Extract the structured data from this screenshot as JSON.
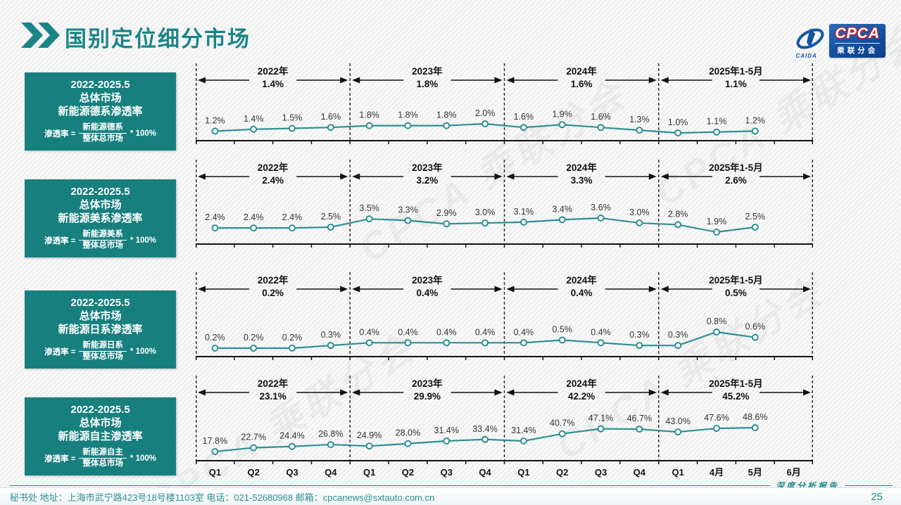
{
  "header": {
    "title": "国别定位细分市场",
    "logo": {
      "cpca": "CPCA",
      "sub": "乘联分会",
      "caida": "CAIDA"
    }
  },
  "watermark_text": "CPCA 乘联分会",
  "sidebar_boxes": [
    {
      "line1": "2022-2025.5",
      "line2": "总体市场",
      "line3": "新能源德系渗透率",
      "formula_prefix": "渗透率 =",
      "numerator": "新能源德系",
      "denominator": "整体总市场",
      "suffix": "* 100%"
    },
    {
      "line1": "2022-2025.5",
      "line2": "总体市场",
      "line3": "新能源美系渗透率",
      "formula_prefix": "渗透率 =",
      "numerator": "新能源美系",
      "denominator": "整体总市场",
      "suffix": "* 100%"
    },
    {
      "line1": "2022-2025.5",
      "line2": "总体市场",
      "line3": "新能源日系渗透率",
      "formula_prefix": "渗透率 =",
      "numerator": "新能源日系",
      "denominator": "整体总市场",
      "suffix": "* 100%"
    },
    {
      "line1": "2022-2025.5",
      "line2": "总体市场",
      "line3": "新能源自主渗透率",
      "formula_prefix": "渗透率 =",
      "numerator": "新能源自主",
      "denominator": "整体总市场",
      "suffix": "* 100%"
    }
  ],
  "x_axis_labels": [
    "Q1",
    "Q2",
    "Q3",
    "Q4",
    "Q1",
    "Q2",
    "Q3",
    "Q4",
    "Q1",
    "Q2",
    "Q3",
    "Q4",
    "Q1",
    "4月",
    "5月",
    "6月"
  ],
  "chart_data": [
    {
      "type": "line",
      "title": "2022-2025.5 总体市场 新能源德系渗透率",
      "x": [
        "Q1",
        "Q2",
        "Q3",
        "Q4",
        "Q1",
        "Q2",
        "Q3",
        "Q4",
        "Q1",
        "Q2",
        "Q3",
        "Q4",
        "Q1",
        "4月",
        "5月"
      ],
      "values": [
        1.2,
        1.4,
        1.5,
        1.6,
        1.8,
        1.8,
        1.8,
        2.0,
        1.6,
        1.9,
        1.6,
        1.3,
        1.0,
        1.1,
        1.2
      ],
      "unit": "%",
      "periods": [
        {
          "label": "2022年",
          "avg": "1.4%"
        },
        {
          "label": "2023年",
          "avg": "1.8%"
        },
        {
          "label": "2024年",
          "avg": "1.6%"
        },
        {
          "label": "2025年1-5月",
          "avg": "1.1%"
        }
      ]
    },
    {
      "type": "line",
      "title": "2022-2025.5 总体市场 新能源美系渗透率",
      "x": [
        "Q1",
        "Q2",
        "Q3",
        "Q4",
        "Q1",
        "Q2",
        "Q3",
        "Q4",
        "Q1",
        "Q2",
        "Q3",
        "Q4",
        "Q1",
        "4月",
        "5月"
      ],
      "values": [
        2.4,
        2.4,
        2.4,
        2.5,
        3.5,
        3.3,
        2.9,
        3.0,
        3.1,
        3.4,
        3.6,
        3.0,
        2.8,
        1.9,
        2.5
      ],
      "unit": "%",
      "periods": [
        {
          "label": "2022年",
          "avg": "2.4%"
        },
        {
          "label": "2023年",
          "avg": "3.2%"
        },
        {
          "label": "2024年",
          "avg": "3.3%"
        },
        {
          "label": "2025年1-5月",
          "avg": "2.6%"
        }
      ]
    },
    {
      "type": "line",
      "title": "2022-2025.5 总体市场 新能源日系渗透率",
      "x": [
        "Q1",
        "Q2",
        "Q3",
        "Q4",
        "Q1",
        "Q2",
        "Q3",
        "Q4",
        "Q1",
        "Q2",
        "Q3",
        "Q4",
        "Q1",
        "4月",
        "5月"
      ],
      "values": [
        0.2,
        0.2,
        0.2,
        0.3,
        0.4,
        0.4,
        0.4,
        0.4,
        0.4,
        0.5,
        0.4,
        0.3,
        0.3,
        0.8,
        0.6
      ],
      "unit": "%",
      "periods": [
        {
          "label": "2022年",
          "avg": "0.2%"
        },
        {
          "label": "2023年",
          "avg": "0.4%"
        },
        {
          "label": "2024年",
          "avg": "0.4%"
        },
        {
          "label": "2025年1-5月",
          "avg": "0.5%"
        }
      ]
    },
    {
      "type": "line",
      "title": "2022-2025.5 总体市场 新能源自主渗透率",
      "x": [
        "Q1",
        "Q2",
        "Q3",
        "Q4",
        "Q1",
        "Q2",
        "Q3",
        "Q4",
        "Q1",
        "Q2",
        "Q3",
        "Q4",
        "Q1",
        "4月",
        "5月"
      ],
      "values": [
        17.8,
        22.7,
        24.4,
        26.8,
        24.9,
        28.0,
        31.4,
        33.4,
        31.4,
        40.7,
        47.1,
        46.7,
        43.0,
        47.6,
        48.6
      ],
      "unit": "%",
      "periods": [
        {
          "label": "2022年",
          "avg": "23.1%"
        },
        {
          "label": "2023年",
          "avg": "29.9%"
        },
        {
          "label": "2024年",
          "avg": "42.2%"
        },
        {
          "label": "2025年1-5月",
          "avg": "45.2%"
        }
      ]
    }
  ],
  "report_label": "深度分析报告",
  "page_number": "25",
  "footer": {
    "text": "秘书处   地址：上海市武宁路423号18号楼1103室  电话：021-52680968   邮箱：cpcanews@sxtauto.com.cn"
  },
  "colors": {
    "accent_teal": "#17807f",
    "line_teal": "#2e8f93",
    "title_teal": "#1b8487",
    "logo_blue": "#124d9e",
    "axis_black": "#111111"
  }
}
